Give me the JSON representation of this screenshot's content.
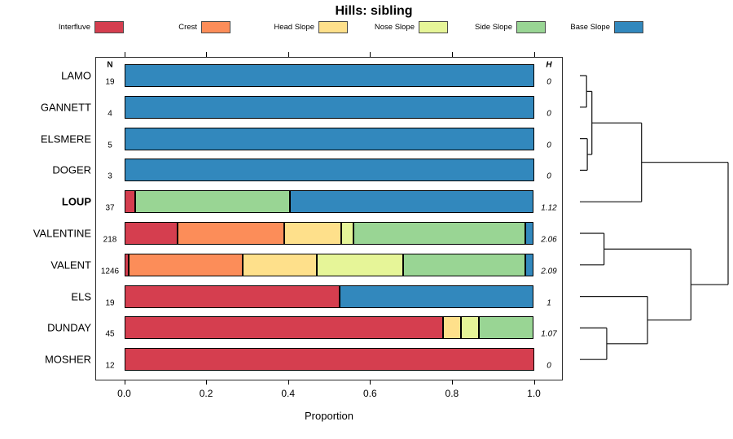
{
  "title": "Hills: sibling",
  "chart_data": {
    "type": "bar",
    "variant": "horizontal-stacked-proportion",
    "title": "Hills: sibling",
    "xlabel": "Proportion",
    "xlim": [
      0,
      1
    ],
    "x_tick_values": [
      0,
      0.2,
      0.4,
      0.6,
      0.8,
      1.0
    ],
    "x_tick_labels": [
      "0.0",
      "0.2",
      "0.4",
      "0.6",
      "0.8",
      "1.0"
    ],
    "grid": false,
    "legend_position": "top",
    "legend": [
      {
        "label": "Interfluve",
        "color": "#D53E4F"
      },
      {
        "label": "Crest",
        "color": "#FC8D59"
      },
      {
        "label": "Head Slope",
        "color": "#FEE08B"
      },
      {
        "label": "Nose Slope",
        "color": "#E6F598"
      },
      {
        "label": "Side Slope",
        "color": "#99D594"
      },
      {
        "label": "Base Slope",
        "color": "#3288BD"
      }
    ],
    "columns": {
      "n_header": "N",
      "h_header": "H"
    },
    "rows": [
      {
        "label": "LAMO",
        "bold": false,
        "n": "19",
        "h": "0",
        "values": [
          0,
          0,
          0,
          0,
          0,
          1
        ]
      },
      {
        "label": "GANNETT",
        "bold": false,
        "n": "4",
        "h": "0",
        "values": [
          0,
          0,
          0,
          0,
          0,
          1
        ]
      },
      {
        "label": "ELSMERE",
        "bold": false,
        "n": "5",
        "h": "0",
        "values": [
          0,
          0,
          0,
          0,
          0,
          1
        ]
      },
      {
        "label": "DOGER",
        "bold": false,
        "n": "3",
        "h": "0",
        "values": [
          0,
          0,
          0,
          0,
          0,
          1
        ]
      },
      {
        "label": "LOUP",
        "bold": true,
        "n": "37",
        "h": "1.12",
        "values": [
          0.027,
          0,
          0,
          0,
          0.378,
          0.595
        ]
      },
      {
        "label": "VALENTINE",
        "bold": false,
        "n": "218",
        "h": "2.06",
        "values": [
          0.13,
          0.26,
          0.14,
          0.03,
          0.42,
          0.02
        ]
      },
      {
        "label": "VALENT",
        "bold": false,
        "n": "1246",
        "h": "2.09",
        "values": [
          0.01,
          0.28,
          0.18,
          0.21,
          0.3,
          0.02
        ]
      },
      {
        "label": "ELS",
        "bold": false,
        "n": "19",
        "h": "1",
        "values": [
          0.526,
          0,
          0,
          0,
          0,
          0.474
        ]
      },
      {
        "label": "DUNDAY",
        "bold": false,
        "n": "45",
        "h": "1.07",
        "values": [
          0.778,
          0,
          0.044,
          0.044,
          0.134,
          0
        ]
      },
      {
        "label": "MOSHER",
        "bold": false,
        "n": "12",
        "h": "0",
        "values": [
          1,
          0,
          0,
          0,
          0,
          0
        ]
      }
    ],
    "dendrogram": {
      "side": "right",
      "merges": [
        {
          "a": "L0",
          "b": "L1",
          "h": 0.045
        },
        {
          "a": "L2",
          "b": "L3",
          "h": 0.05
        },
        {
          "a": "M0",
          "b": "M1",
          "h": 0.081
        },
        {
          "a": "M2",
          "b": "L4",
          "h": 0.416
        },
        {
          "a": "L5",
          "b": "L6",
          "h": 0.163
        },
        {
          "a": "L8",
          "b": "L9",
          "h": 0.181
        },
        {
          "a": "L7",
          "b": "M5",
          "h": 0.456
        },
        {
          "a": "M4",
          "b": "M6",
          "h": 0.749
        },
        {
          "a": "M3",
          "b": "M7",
          "h": 1.0
        }
      ]
    }
  }
}
